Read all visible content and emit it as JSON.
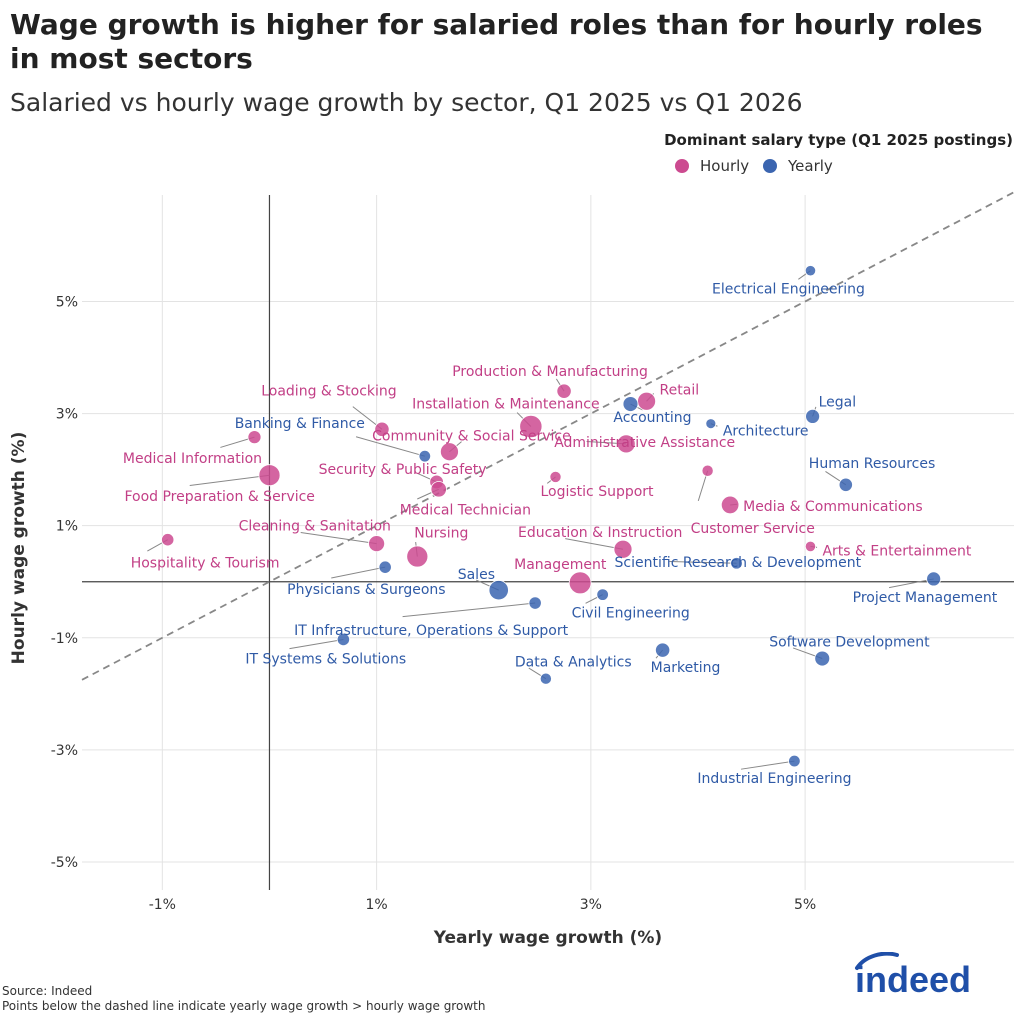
{
  "header": {
    "title": "Wage growth is higher for salaried roles than for hourly roles in most sectors",
    "subtitle": "Salaried vs hourly wage growth by sector, Q1 2025 vs Q1 2026"
  },
  "footer": {
    "source": "Source: Indeed",
    "note": "Points below the dashed line indicate yearly wage growth > hourly wage growth"
  },
  "logo": {
    "text": "indeed",
    "color": "#1f4fa8"
  },
  "chart_data": {
    "type": "scatter",
    "title": "Wage growth is higher for salaried roles than for hourly roles in most sectors",
    "subtitle": "Salaried vs hourly wage growth by sector, Q1 2025 vs Q1 2026",
    "xlabel": "Yearly wage growth (%)",
    "ylabel": "Hourly wage growth (%)",
    "xlim": [
      -1.75,
      6.95
    ],
    "ylim": [
      -5.5,
      6.9
    ],
    "x_ticks": [
      {
        "value": -1,
        "label": "-1%"
      },
      {
        "value": 1,
        "label": "1%"
      },
      {
        "value": 3,
        "label": "3%"
      },
      {
        "value": 5,
        "label": "5%"
      }
    ],
    "y_ticks": [
      {
        "value": 5,
        "label": "5%"
      },
      {
        "value": 3,
        "label": "3%"
      },
      {
        "value": 1,
        "label": "1%"
      },
      {
        "value": -1,
        "label": "-1%"
      },
      {
        "value": -3,
        "label": "-3%"
      },
      {
        "value": -5,
        "label": "-5%"
      }
    ],
    "grid": true,
    "reference_lines": {
      "x_zero": true,
      "y_zero": true,
      "diagonal": "y = x, dashed"
    },
    "legend": {
      "title": "Dominant salary type (Q1 2025 postings)",
      "placement": "top-right",
      "entries": [
        {
          "name": "Hourly",
          "color": "#cc4a90"
        },
        {
          "name": "Yearly",
          "color": "#3b65b0"
        }
      ]
    },
    "colors": {
      "Hourly": "#cc4a90",
      "Yearly": "#3b65b0",
      "Hourly_text": "#c23f86",
      "Yearly_text": "#2f5aa6"
    },
    "size_note": "marker size relative, 1 = smallest",
    "points": [
      {
        "name": "Electrical Engineering",
        "type": "Yearly",
        "x": 5.05,
        "y": 5.55,
        "size": 1.1
      },
      {
        "name": "Production & Manufacturing",
        "type": "Hourly",
        "x": 2.75,
        "y": 3.4,
        "size": 2.2
      },
      {
        "name": "Retail",
        "type": "Hourly",
        "x": 3.52,
        "y": 3.22,
        "size": 3.6
      },
      {
        "name": "Installation & Maintenance",
        "type": "Hourly",
        "x": 2.44,
        "y": 2.77,
        "size": 5.6
      },
      {
        "name": "Accounting",
        "type": "Yearly",
        "x": 3.37,
        "y": 3.17,
        "size": 2.4
      },
      {
        "name": "Legal",
        "type": "Yearly",
        "x": 5.07,
        "y": 2.95,
        "size": 2.1
      },
      {
        "name": "Architecture",
        "type": "Yearly",
        "x": 4.12,
        "y": 2.82,
        "size": 1.0
      },
      {
        "name": "Loading & Stocking",
        "type": "Hourly",
        "x": 1.05,
        "y": 2.72,
        "size": 2.2
      },
      {
        "name": "Banking & Finance",
        "type": "Yearly",
        "x": 1.45,
        "y": 2.24,
        "size": 1.4
      },
      {
        "name": "Medical Information",
        "type": "Hourly",
        "x": -0.14,
        "y": 2.58,
        "size": 1.8
      },
      {
        "name": "Community & Social Service",
        "type": "Hourly",
        "x": 1.68,
        "y": 2.32,
        "size": 3.6
      },
      {
        "name": "Administrative Assistance",
        "type": "Hourly",
        "x": 3.33,
        "y": 2.46,
        "size": 3.6
      },
      {
        "name": "Security & Public Safety",
        "type": "Hourly",
        "x": 1.56,
        "y": 1.78,
        "size": 2.0
      },
      {
        "name": "Medical Technician",
        "type": "Hourly",
        "x": 1.58,
        "y": 1.65,
        "size": 2.6
      },
      {
        "name": "Logistic Support",
        "type": "Hourly",
        "x": 2.67,
        "y": 1.87,
        "size": 1.3
      },
      {
        "name": "Food Preparation & Service",
        "type": "Hourly",
        "x": 0.0,
        "y": 1.9,
        "size": 5.0
      },
      {
        "name": "Human Resources",
        "type": "Yearly",
        "x": 5.38,
        "y": 1.73,
        "size": 1.9
      },
      {
        "name": "Customer Service",
        "type": "Hourly",
        "x": 4.09,
        "y": 1.98,
        "size": 1.3
      },
      {
        "name": "Media & Communications",
        "type": "Hourly",
        "x": 4.3,
        "y": 1.37,
        "size": 3.4
      },
      {
        "name": "Cleaning & Sanitation",
        "type": "Hourly",
        "x": 1.0,
        "y": 0.68,
        "size": 2.8
      },
      {
        "name": "Education & Instruction",
        "type": "Hourly",
        "x": 3.3,
        "y": 0.58,
        "size": 3.6
      },
      {
        "name": "Nursing",
        "type": "Hourly",
        "x": 1.38,
        "y": 0.45,
        "size": 5.0
      },
      {
        "name": "Hospitality & Tourism",
        "type": "Hourly",
        "x": -0.95,
        "y": 0.75,
        "size": 1.6
      },
      {
        "name": "Arts & Entertainment",
        "type": "Hourly",
        "x": 5.05,
        "y": 0.63,
        "size": 1.1
      },
      {
        "name": "Physicians & Surgeons",
        "type": "Yearly",
        "x": 1.08,
        "y": 0.26,
        "size": 1.6
      },
      {
        "name": "Scientific Research & Development",
        "type": "Yearly",
        "x": 4.36,
        "y": 0.33,
        "size": 1.4
      },
      {
        "name": "Management",
        "type": "Hourly",
        "x": 2.9,
        "y": -0.02,
        "size": 5.4
      },
      {
        "name": "Sales",
        "type": "Yearly",
        "x": 2.14,
        "y": -0.15,
        "size": 4.2
      },
      {
        "name": "Project Management",
        "type": "Yearly",
        "x": 6.2,
        "y": 0.05,
        "size": 2.1
      },
      {
        "name": "Civil Engineering",
        "type": "Yearly",
        "x": 3.11,
        "y": -0.23,
        "size": 1.4
      },
      {
        "name": "IT Infrastructure, Operations & Support",
        "type": "Yearly",
        "x": 2.48,
        "y": -0.38,
        "size": 1.6
      },
      {
        "name": "IT Systems & Solutions",
        "type": "Yearly",
        "x": 0.69,
        "y": -1.03,
        "size": 1.6
      },
      {
        "name": "Marketing",
        "type": "Yearly",
        "x": 3.67,
        "y": -1.22,
        "size": 2.2
      },
      {
        "name": "Software Development",
        "type": "Yearly",
        "x": 5.16,
        "y": -1.37,
        "size": 2.4
      },
      {
        "name": "Data & Analytics",
        "type": "Yearly",
        "x": 2.58,
        "y": -1.73,
        "size": 1.3
      },
      {
        "name": "Industrial Engineering",
        "type": "Yearly",
        "x": 4.9,
        "y": -3.2,
        "size": 1.4
      }
    ]
  }
}
